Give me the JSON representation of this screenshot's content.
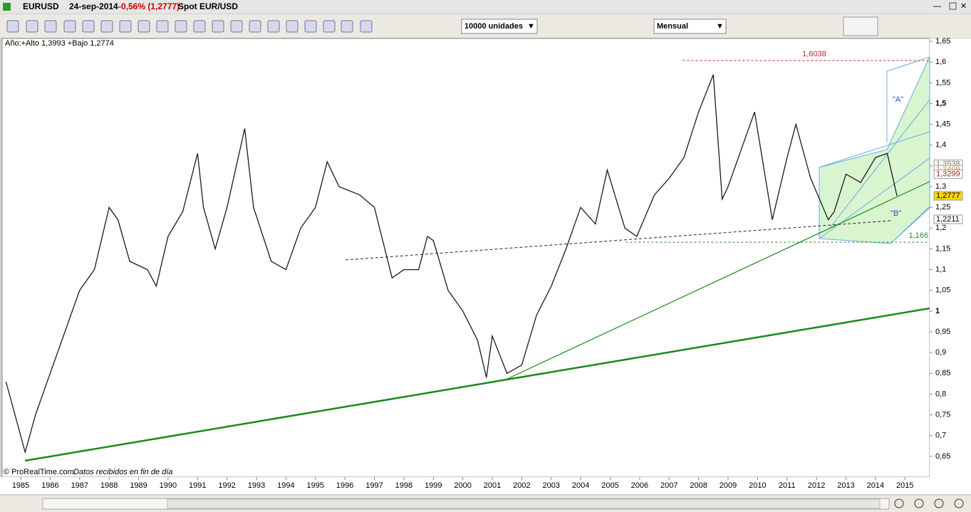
{
  "header": {
    "symbol": "EURUSD",
    "date": "24-sep-2014",
    "change": "-0,56% (1,2777)",
    "description": "Spot EUR/USD"
  },
  "toolbar": {
    "quantity": "10000 unidades",
    "period": "Mensual"
  },
  "chart_data": {
    "type": "line",
    "info": "Año:+Alto 1,3993 +Bajo 1,2774",
    "copyright": "© ProRealTime.com",
    "note": "Datos recibidos en fin de día",
    "color": "#1a1a1a",
    "x": [
      1984.5,
      1985.15,
      1985.5,
      1986.0,
      1986.5,
      1987.0,
      1987.5,
      1988.0,
      1988.3,
      1988.7,
      1989.3,
      1989.6,
      1990.0,
      1990.5,
      1991.0,
      1991.2,
      1991.6,
      1992.0,
      1992.6,
      1992.9,
      1993.5,
      1994.0,
      1994.5,
      1995.0,
      1995.4,
      1995.8,
      1996.5,
      1997.0,
      1997.6,
      1998.0,
      1998.5,
      1998.8,
      1999.0,
      1999.5,
      2000.0,
      2000.5,
      2000.8,
      2001.0,
      2001.5,
      2002.0,
      2002.5,
      2003.0,
      2003.5,
      2004.0,
      2004.5,
      2004.9,
      2005.5,
      2005.9,
      2006.5,
      2007.0,
      2007.5,
      2008.0,
      2008.5,
      2008.8,
      2009.0,
      2009.9,
      2010.5,
      2011.0,
      2011.3,
      2011.8,
      2012.4,
      2012.6,
      2013.0,
      2013.5,
      2014.0,
      2014.4,
      2014.73
    ],
    "values": [
      0.83,
      0.66,
      0.75,
      0.85,
      0.95,
      1.05,
      1.1,
      1.25,
      1.22,
      1.12,
      1.1,
      1.06,
      1.18,
      1.24,
      1.38,
      1.25,
      1.15,
      1.25,
      1.44,
      1.25,
      1.12,
      1.1,
      1.2,
      1.25,
      1.36,
      1.3,
      1.28,
      1.25,
      1.08,
      1.1,
      1.1,
      1.18,
      1.17,
      1.05,
      1.0,
      0.93,
      0.84,
      0.94,
      0.85,
      0.87,
      0.99,
      1.06,
      1.15,
      1.25,
      1.21,
      1.34,
      1.2,
      1.18,
      1.28,
      1.32,
      1.37,
      1.48,
      1.57,
      1.27,
      1.3,
      1.48,
      1.22,
      1.37,
      1.45,
      1.32,
      1.22,
      1.24,
      1.33,
      1.31,
      1.37,
      1.38,
      1.2777
    ],
    "xlim": [
      1984.37,
      2015.84
    ],
    "ylim": [
      0.6,
      1.657
    ],
    "xticks": [
      1985,
      1986,
      1987,
      1988,
      1989,
      1990,
      1991,
      1992,
      1993,
      1994,
      1995,
      1996,
      1997,
      1998,
      1999,
      2000,
      2001,
      2002,
      2003,
      2004,
      2005,
      2006,
      2007,
      2008,
      2009,
      2010,
      2011,
      2012,
      2013,
      2014,
      2015
    ],
    "yticks": [
      {
        "value": 0.65,
        "label": "0,65"
      },
      {
        "value": 0.7,
        "label": "0,7"
      },
      {
        "value": 0.75,
        "label": "0,75"
      },
      {
        "value": 0.8,
        "label": "0,8"
      },
      {
        "value": 0.85,
        "label": "0,85"
      },
      {
        "value": 0.9,
        "label": "0,9"
      },
      {
        "value": 0.95,
        "label": "0,95"
      },
      1,
      {
        "value": 1.05,
        "label": "1,05"
      },
      {
        "value": 1.1,
        "label": "1,1"
      },
      {
        "value": 1.15,
        "label": "1,15"
      },
      {
        "value": 1.2,
        "label": "1,2"
      },
      {
        "value": 1.25,
        "label": "1,25"
      },
      {
        "value": 1.3,
        "label": "1,3"
      },
      {
        "value": 1.35,
        "label": "1,35"
      },
      {
        "value": 1.4,
        "label": "1,4"
      },
      {
        "value": 1.45,
        "label": "1,45"
      },
      {
        "value": 1.5,
        "label": "1,5"
      },
      {
        "value": 1.55,
        "label": "1,55"
      },
      {
        "value": 1.6,
        "label": "1,6"
      },
      {
        "value": 1.65,
        "label": "1,65"
      }
    ],
    "levels": [
      {
        "value": 1.6038,
        "label": "1,6038",
        "color": "#cc2222"
      },
      {
        "value": 1.166,
        "label": "1,166",
        "color": "#2a8a2a"
      }
    ],
    "price_labels": [
      {
        "value": 1.3538,
        "label": "1,3538",
        "color": "#777777"
      },
      {
        "value": 1.3409,
        "label": "1,3409",
        "color": "#e08a1a"
      },
      {
        "value": 1.3299,
        "label": "1,3299",
        "color": "#aa2222"
      },
      {
        "value": 1.2777,
        "label": "1,2777",
        "color": "#000000",
        "background": "#ffd700"
      },
      {
        "value": 1.2211,
        "label": "1,2211",
        "color": "#000000"
      }
    ],
    "annotations": [
      "\"A\"",
      "\"B\""
    ]
  }
}
